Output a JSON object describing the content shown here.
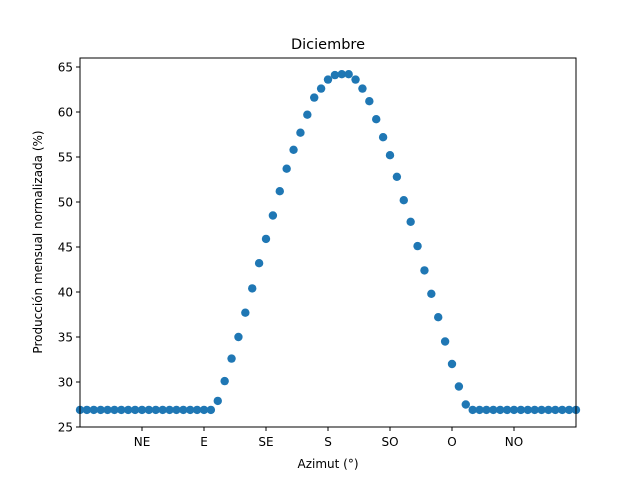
{
  "chart_data": {
    "type": "scatter",
    "title": "Diciembre",
    "xlabel": "Azimut (°)",
    "ylabel": "Producción mensual normalizada (%)",
    "xlim": [
      -180,
      180
    ],
    "ylim": [
      25,
      66
    ],
    "x_ticks": [
      {
        "value": -135,
        "label": "NE"
      },
      {
        "value": -90,
        "label": "E"
      },
      {
        "value": -45,
        "label": "SE"
      },
      {
        "value": 0,
        "label": "S"
      },
      {
        "value": 45,
        "label": "SO"
      },
      {
        "value": 90,
        "label": "O"
      },
      {
        "value": 135,
        "label": "NO"
      }
    ],
    "y_ticks": [
      25,
      30,
      35,
      40,
      45,
      50,
      55,
      60,
      65
    ],
    "grid": false,
    "legend": "none",
    "marker_color": "#1f77b4",
    "series": [
      {
        "x": [
          -180,
          -175,
          -170,
          -165,
          -160,
          -155,
          -150,
          -145,
          -140,
          -135,
          -130,
          -125,
          -120,
          -115,
          -110,
          -105,
          -100,
          -95,
          -90,
          -85,
          -80,
          -75,
          -70,
          -65,
          -60,
          -55,
          -50,
          -45,
          -40,
          -35,
          -30,
          -25,
          -20,
          -15,
          -10,
          -5,
          0,
          5,
          10,
          15,
          20,
          25,
          30,
          35,
          40,
          45,
          50,
          55,
          60,
          65,
          70,
          75,
          80,
          85,
          90,
          95,
          100,
          105,
          110,
          115,
          120,
          125,
          130,
          135,
          140,
          145,
          150,
          155,
          160,
          165,
          170,
          175,
          180
        ],
        "y": [
          26.9,
          26.9,
          26.9,
          26.9,
          26.9,
          26.9,
          26.9,
          26.9,
          26.9,
          26.9,
          26.9,
          26.9,
          26.9,
          26.9,
          26.9,
          26.9,
          26.9,
          26.9,
          26.9,
          26.9,
          27.9,
          30.1,
          32.6,
          35.0,
          37.7,
          40.4,
          43.2,
          45.9,
          48.5,
          51.2,
          53.7,
          55.8,
          57.7,
          59.7,
          61.6,
          62.6,
          63.6,
          64.1,
          64.2,
          64.2,
          63.6,
          62.6,
          61.2,
          59.2,
          57.2,
          55.2,
          52.8,
          50.2,
          47.8,
          45.1,
          42.4,
          39.8,
          37.2,
          34.5,
          32.0,
          29.5,
          27.5,
          26.9,
          26.9,
          26.9,
          26.9,
          26.9,
          26.9,
          26.9,
          26.9,
          26.9,
          26.9,
          26.9,
          26.9,
          26.9,
          26.9,
          26.9,
          26.9
        ]
      }
    ]
  }
}
